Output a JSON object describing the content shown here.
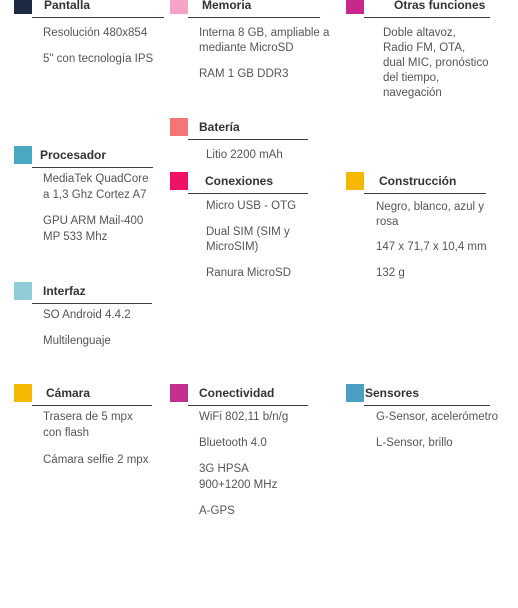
{
  "colors": {
    "navy": "#1c2a44",
    "pink_light": "#f5a3c7",
    "magenta": "#c8288a",
    "coral": "#f47575",
    "teal": "#4aa9c1",
    "hot_pink": "#ee1166",
    "yellow": "#f5b800",
    "light_blue": "#90cdd8",
    "purple_pink": "#c32e91",
    "steel_blue": "#4a9fc2"
  },
  "sections": {
    "pantalla": {
      "title": "Pantalla",
      "items": [
        "Resolución 480x854",
        "5\" con tecnología IPS"
      ]
    },
    "memoria": {
      "title": "Memoria",
      "items": [
        "Interna 8 GB, ampliable a",
        "mediante MicroSD",
        "RAM 1 GB DDR3"
      ]
    },
    "otras": {
      "title": "Otras funciones",
      "items": [
        "Doble altavoz,",
        "Radio FM, OTA,",
        "dual MIC, pronóstico",
        "del tiempo,",
        "navegación"
      ]
    },
    "bateria": {
      "title": "Batería",
      "items": [
        "Litio 2200 mAh"
      ]
    },
    "procesador": {
      "title": "Procesador",
      "items": [
        "MediaTek QuadCore",
        "a 1,3 Ghz Cortez A7",
        "GPU ARM Mail-400",
        "MP 533 Mhz"
      ]
    },
    "conexiones": {
      "title": "Conexiones",
      "items": [
        "Micro USB - OTG",
        "Dual SIM (SIM y",
        "MicroSIM)",
        "Ranura MicroSD"
      ]
    },
    "construccion": {
      "title": "Construcción",
      "items": [
        "Negro, blanco, azul y",
        "rosa",
        "147 x 71,7 x 10,4 mm",
        "132 g"
      ]
    },
    "interfaz": {
      "title": "Interfaz",
      "items": [
        "SO Android 4.4.2",
        "Multilenguaje"
      ]
    },
    "camara": {
      "title": "Cámara",
      "items": [
        "Trasera de 5 mpx",
        "con flash",
        "Cámara selfie 2 mpx"
      ]
    },
    "conectividad": {
      "title": "Conectividad",
      "items": [
        "WiFi 802,11 b/n/g",
        "Bluetooth 4.0",
        "3G HPSA",
        "900+1200 MHz",
        "A-GPS"
      ]
    },
    "sensores": {
      "title": "Sensores",
      "items": [
        "G-Sensor, acelerómetro",
        "L-Sensor, brillo"
      ]
    }
  }
}
